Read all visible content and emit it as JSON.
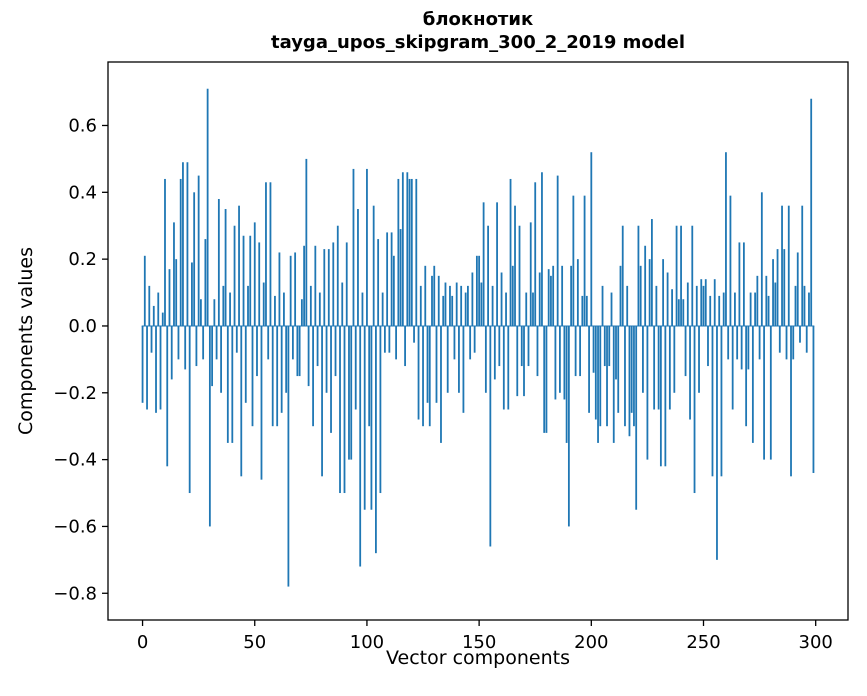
{
  "chart_data": {
    "type": "bar",
    "title_line1": "блокнотик",
    "title_line2": "tayga_upos_skipgram_300_2_2019 model",
    "xlabel": "Vector components",
    "ylabel": "Components values",
    "bar_color": "#1f77b4",
    "background_color": "#ffffff",
    "grid": false,
    "legend": "none",
    "xlim": [
      -15.4,
      314.4
    ],
    "ylim": [
      -0.88,
      0.79
    ],
    "xticks": [
      0,
      50,
      100,
      150,
      200,
      250,
      300
    ],
    "yticks": [
      0.6,
      0.4,
      0.2,
      0.0,
      -0.2,
      -0.4,
      -0.6,
      -0.8
    ],
    "x_start": 0,
    "x_step": 1,
    "values": [
      -0.23,
      0.21,
      -0.25,
      0.12,
      -0.08,
      0.06,
      -0.26,
      0.1,
      -0.25,
      0.04,
      0.44,
      -0.42,
      0.17,
      -0.16,
      0.31,
      0.2,
      -0.1,
      0.44,
      0.49,
      -0.13,
      0.49,
      -0.5,
      0.19,
      0.4,
      -0.12,
      0.45,
      0.08,
      -0.1,
      0.26,
      0.71,
      -0.6,
      -0.18,
      0.08,
      -0.1,
      0.38,
      -0.2,
      0.12,
      0.35,
      -0.35,
      0.1,
      -0.35,
      0.3,
      -0.08,
      0.36,
      -0.45,
      0.27,
      -0.23,
      0.12,
      0.27,
      -0.3,
      0.31,
      -0.15,
      0.25,
      -0.46,
      0.13,
      0.43,
      -0.1,
      0.43,
      -0.3,
      0.09,
      -0.3,
      0.22,
      -0.26,
      0.1,
      -0.2,
      -0.78,
      0.21,
      -0.1,
      0.22,
      -0.15,
      -0.15,
      0.08,
      0.24,
      0.5,
      -0.18,
      0.12,
      -0.3,
      0.24,
      -0.12,
      0.1,
      -0.45,
      0.23,
      -0.2,
      0.23,
      -0.32,
      0.25,
      -0.15,
      0.3,
      -0.5,
      0.13,
      -0.5,
      0.25,
      -0.4,
      -0.4,
      0.47,
      -0.25,
      0.35,
      -0.72,
      0.1,
      -0.55,
      0.47,
      -0.3,
      -0.55,
      0.36,
      -0.68,
      0.26,
      -0.5,
      0.1,
      -0.08,
      0.28,
      -0.08,
      0.28,
      0.21,
      -0.1,
      0.44,
      0.29,
      0.46,
      -0.12,
      0.46,
      0.44,
      0.44,
      -0.05,
      0.44,
      -0.28,
      0.12,
      -0.3,
      0.18,
      -0.23,
      -0.3,
      0.15,
      0.18,
      -0.23,
      0.15,
      -0.35,
      0.09,
      0.13,
      -0.2,
      0.12,
      0.09,
      -0.1,
      0.13,
      -0.2,
      0.12,
      -0.26,
      0.1,
      0.12,
      -0.1,
      0.16,
      -0.08,
      0.21,
      0.21,
      0.13,
      0.37,
      -0.2,
      0.3,
      -0.66,
      0.12,
      -0.16,
      0.37,
      -0.12,
      0.16,
      -0.25,
      0.1,
      -0.25,
      0.44,
      0.18,
      0.36,
      -0.21,
      0.3,
      -0.12,
      -0.21,
      0.1,
      -0.12,
      0.31,
      0.1,
      0.43,
      -0.15,
      0.16,
      0.46,
      -0.32,
      -0.32,
      0.17,
      0.15,
      0.18,
      -0.22,
      0.45,
      -0.2,
      0.18,
      -0.22,
      -0.35,
      -0.6,
      0.18,
      0.39,
      -0.15,
      0.2,
      -0.15,
      0.09,
      0.39,
      0.09,
      -0.26,
      0.52,
      -0.14,
      -0.28,
      -0.35,
      -0.3,
      0.12,
      -0.12,
      -0.3,
      -0.12,
      0.1,
      -0.35,
      -0.16,
      -0.26,
      0.18,
      0.3,
      -0.3,
      0.12,
      -0.33,
      -0.26,
      -0.3,
      -0.55,
      0.3,
      0.18,
      -0.2,
      0.24,
      -0.4,
      0.2,
      0.32,
      -0.25,
      0.12,
      -0.25,
      -0.42,
      0.2,
      -0.42,
      0.16,
      -0.25,
      0.11,
      -0.2,
      0.3,
      0.08,
      0.3,
      0.08,
      -0.15,
      0.13,
      -0.28,
      0.3,
      -0.5,
      0.12,
      -0.2,
      0.14,
      0.12,
      0.14,
      -0.12,
      0.09,
      -0.45,
      0.14,
      -0.7,
      0.09,
      -0.45,
      0.1,
      0.52,
      -0.1,
      0.39,
      -0.25,
      0.1,
      -0.1,
      0.25,
      -0.13,
      0.25,
      -0.3,
      -0.13,
      0.1,
      -0.35,
      0.1,
      0.15,
      -0.1,
      0.4,
      -0.4,
      0.15,
      0.09,
      -0.4,
      0.2,
      0.13,
      0.23,
      -0.08,
      0.36,
      0.23,
      -0.1,
      0.36,
      -0.45,
      -0.1,
      0.12,
      0.22,
      -0.05,
      0.36,
      0.12,
      -0.08,
      0.1,
      0.68,
      -0.44
    ]
  }
}
